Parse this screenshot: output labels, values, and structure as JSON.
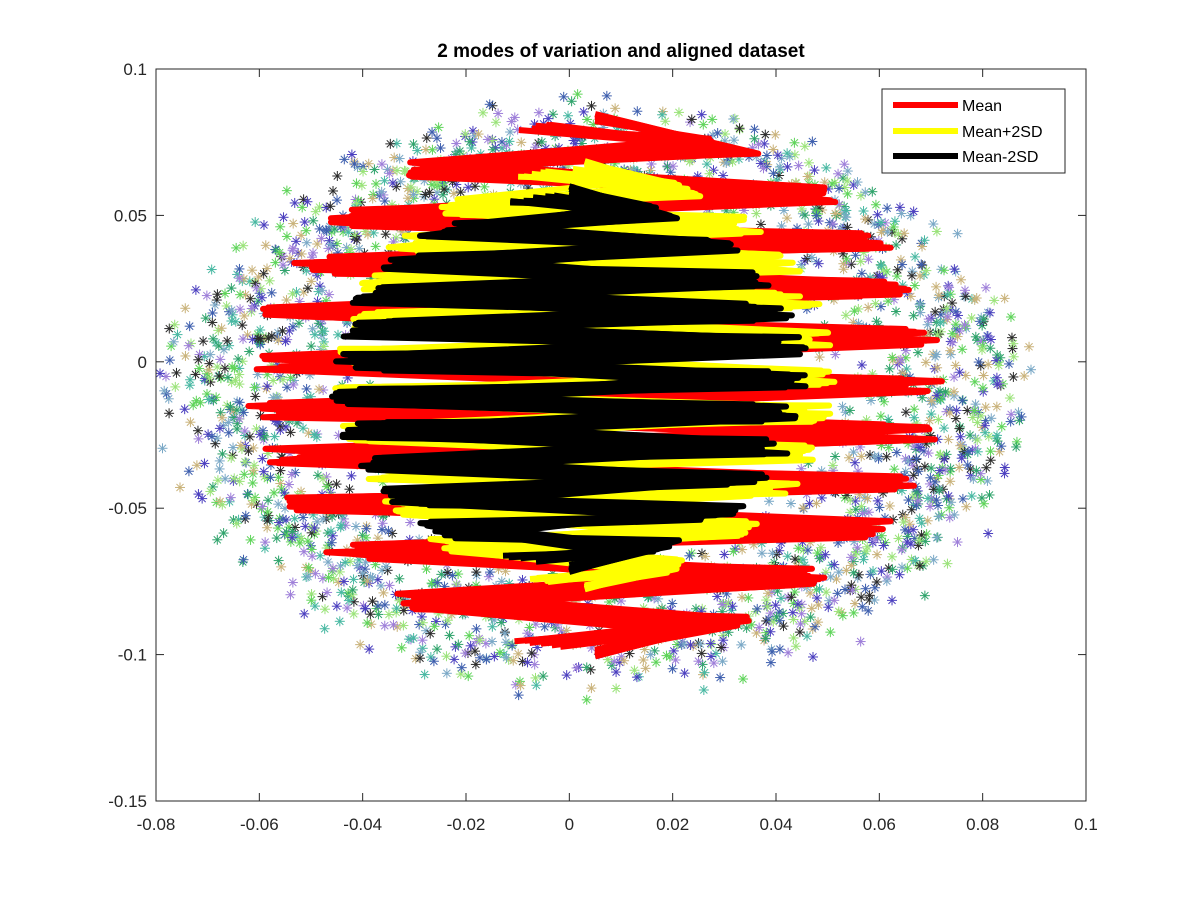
{
  "chart_data": {
    "type": "scatter",
    "title": "2 modes of variation and aligned dataset",
    "xlabel": "",
    "ylabel": "",
    "xlim": [
      -0.08,
      0.1
    ],
    "ylim": [
      -0.15,
      0.1
    ],
    "xticks": [
      -0.08,
      -0.06,
      -0.04,
      -0.02,
      0,
      0.02,
      0.04,
      0.06,
      0.08,
      0.1
    ],
    "yticks": [
      -0.15,
      -0.1,
      -0.05,
      0,
      0.05,
      0.1
    ],
    "xtick_labels": [
      "-0.08",
      "-0.06",
      "-0.04",
      "-0.02",
      "0",
      "0.02",
      "0.04",
      "0.06",
      "0.08",
      "0.1"
    ],
    "ytick_labels": [
      "-0.15",
      "-0.1",
      "-0.05",
      "0",
      "0.05",
      "0.1"
    ],
    "grid": false,
    "legend_position": "top-right",
    "legend": [
      {
        "label": "Mean",
        "color": "#ff0000"
      },
      {
        "label": "Mean+2SD",
        "color": "#ffff00"
      },
      {
        "label": "Mean-2SD",
        "color": "#000000"
      }
    ],
    "series": [
      {
        "name": "Mean",
        "kind": "line",
        "color": "#ff0000",
        "center": [
          0.005,
          -0.008
        ],
        "half_width": [
          -0.066,
          0.066
        ],
        "y_range": [
          -0.098,
          0.082
        ]
      },
      {
        "name": "Mean+2SD",
        "kind": "line",
        "color": "#ffff00",
        "center": [
          0.003,
          -0.005
        ],
        "half_width": [
          -0.047,
          0.048
        ],
        "y_range": [
          -0.076,
          0.066
        ]
      },
      {
        "name": "Mean-2SD",
        "kind": "line",
        "color": "#000000",
        "center": [
          0.0,
          -0.005
        ],
        "half_width": [
          -0.045,
          0.046
        ],
        "y_range": [
          -0.069,
          0.057
        ]
      }
    ],
    "scatter_cloud": {
      "marker": "*",
      "x_range": [
        -0.078,
        0.088
      ],
      "y_range": [
        -0.112,
        0.088
      ],
      "colors": [
        "#4b3fbf",
        "#2fa36b",
        "#5fd45a",
        "#9be37a",
        "#2b2b2b",
        "#9e7fd9",
        "#7aa8c6",
        "#c9b27a",
        "#3e5fae",
        "#48b8a2"
      ]
    }
  }
}
